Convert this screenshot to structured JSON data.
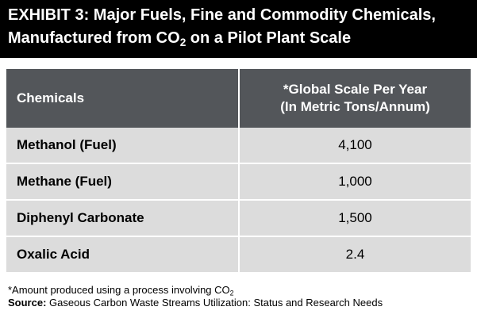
{
  "title": {
    "line1": "EXHIBIT 3: Major Fuels, Fine and Commodity Chemicals,",
    "line2_pre": "Manufactured from CO",
    "line2_sub": "2",
    "line2_post": " on a Pilot Plant Scale"
  },
  "table": {
    "header": {
      "col1": "Chemicals",
      "col2_line1": "*Global Scale Per Year",
      "col2_line2": "(In Metric Tons/Annum)"
    },
    "rows": [
      {
        "chemical": "Methanol (Fuel)",
        "value": "4,100"
      },
      {
        "chemical": "Methane (Fuel)",
        "value": "1,000"
      },
      {
        "chemical": "Diphenyl Carbonate",
        "value": "1,500"
      },
      {
        "chemical": "Oxalic Acid",
        "value": "2.4"
      }
    ]
  },
  "footnote": {
    "text": "*Amount produced using a process involving CO",
    "sub": "2"
  },
  "source": {
    "label": "Source:",
    "text": " Gaseous Carbon Waste Streams Utilization: Status and Research Needs"
  },
  "colors": {
    "title_bg": "#000000",
    "header_bg": "#53565a",
    "row_bg": "#dcdcdc"
  }
}
